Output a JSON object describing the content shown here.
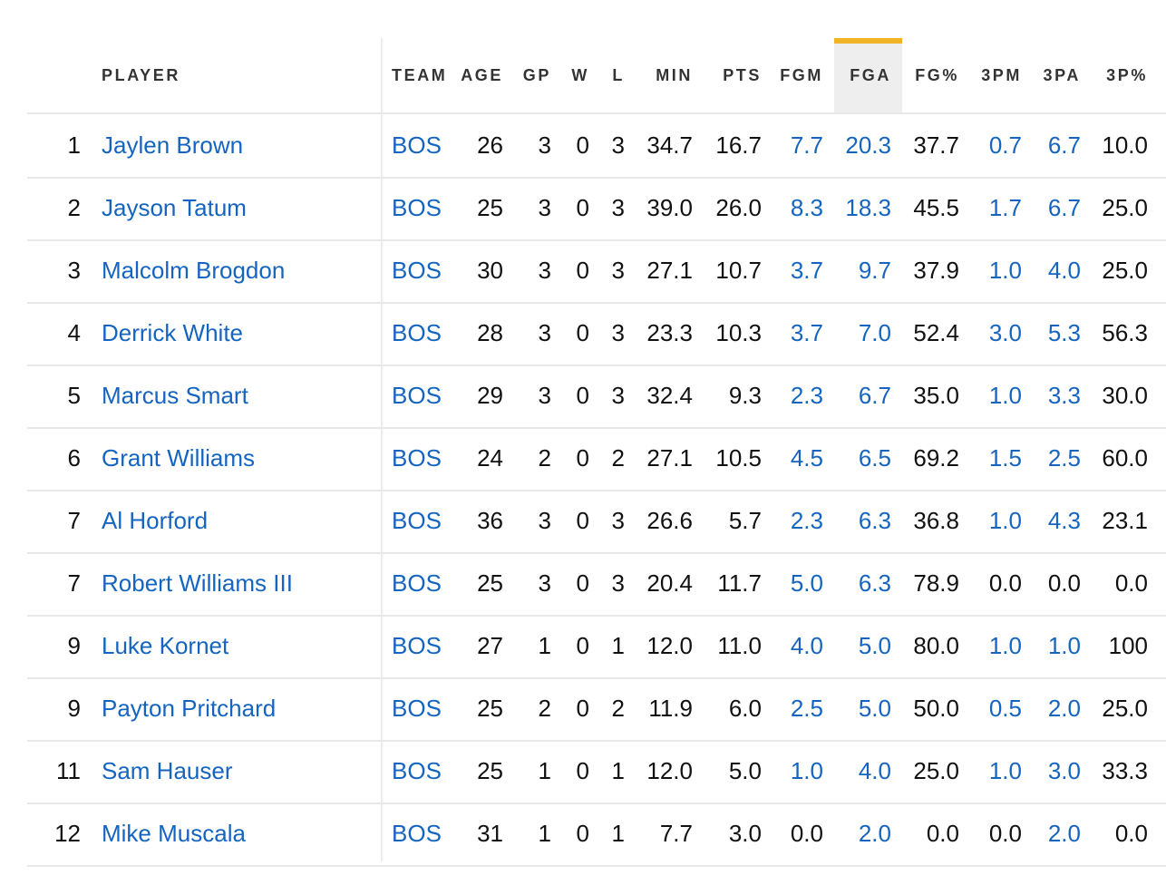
{
  "table": {
    "sort_column": "FGA",
    "columns": [
      "",
      "PLAYER",
      "TEAM",
      "AGE",
      "GP",
      "W",
      "L",
      "MIN",
      "PTS",
      "FGM",
      "FGA",
      "FG%",
      "3PM",
      "3PA",
      "3P%"
    ],
    "linked_columns": [
      1,
      2,
      9,
      10,
      12,
      13
    ],
    "rows": [
      [
        "1",
        "Jaylen Brown",
        "BOS",
        "26",
        "3",
        "0",
        "3",
        "34.7",
        "16.7",
        "7.7",
        "20.3",
        "37.7",
        "0.7",
        "6.7",
        "10.0"
      ],
      [
        "2",
        "Jayson Tatum",
        "BOS",
        "25",
        "3",
        "0",
        "3",
        "39.0",
        "26.0",
        "8.3",
        "18.3",
        "45.5",
        "1.7",
        "6.7",
        "25.0"
      ],
      [
        "3",
        "Malcolm Brogdon",
        "BOS",
        "30",
        "3",
        "0",
        "3",
        "27.1",
        "10.7",
        "3.7",
        "9.7",
        "37.9",
        "1.0",
        "4.0",
        "25.0"
      ],
      [
        "4",
        "Derrick White",
        "BOS",
        "28",
        "3",
        "0",
        "3",
        "23.3",
        "10.3",
        "3.7",
        "7.0",
        "52.4",
        "3.0",
        "5.3",
        "56.3"
      ],
      [
        "5",
        "Marcus Smart",
        "BOS",
        "29",
        "3",
        "0",
        "3",
        "32.4",
        "9.3",
        "2.3",
        "6.7",
        "35.0",
        "1.0",
        "3.3",
        "30.0"
      ],
      [
        "6",
        "Grant Williams",
        "BOS",
        "24",
        "2",
        "0",
        "2",
        "27.1",
        "10.5",
        "4.5",
        "6.5",
        "69.2",
        "1.5",
        "2.5",
        "60.0"
      ],
      [
        "7",
        "Al Horford",
        "BOS",
        "36",
        "3",
        "0",
        "3",
        "26.6",
        "5.7",
        "2.3",
        "6.3",
        "36.8",
        "1.0",
        "4.3",
        "23.1"
      ],
      [
        "7",
        "Robert Williams III",
        "BOS",
        "25",
        "3",
        "0",
        "3",
        "20.4",
        "11.7",
        "5.0",
        "6.3",
        "78.9",
        "0.0",
        "0.0",
        "0.0"
      ],
      [
        "9",
        "Luke Kornet",
        "BOS",
        "27",
        "1",
        "0",
        "1",
        "12.0",
        "11.0",
        "4.0",
        "5.0",
        "80.0",
        "1.0",
        "1.0",
        "100"
      ],
      [
        "9",
        "Payton Pritchard",
        "BOS",
        "25",
        "2",
        "0",
        "2",
        "11.9",
        "6.0",
        "2.5",
        "5.0",
        "50.0",
        "0.5",
        "2.0",
        "25.0"
      ],
      [
        "11",
        "Sam Hauser",
        "BOS",
        "25",
        "1",
        "0",
        "1",
        "12.0",
        "5.0",
        "1.0",
        "4.0",
        "25.0",
        "1.0",
        "3.0",
        "33.3"
      ],
      [
        "12",
        "Mike Muscala",
        "BOS",
        "31",
        "1",
        "0",
        "1",
        "7.7",
        "3.0",
        "0.0",
        "2.0",
        "0.0",
        "0.0",
        "2.0",
        "0.0"
      ]
    ],
    "nonlinked_zero_cells": {
      "7": [
        12,
        13
      ],
      "11": [
        9,
        12
      ]
    }
  },
  "colors": {
    "link": "#1565c0",
    "text": "#111111",
    "header_text": "#333333",
    "sort_indicator": "#f0b323",
    "sorted_column_bg": "#eeeeee",
    "row_border": "#e8e8e8"
  }
}
